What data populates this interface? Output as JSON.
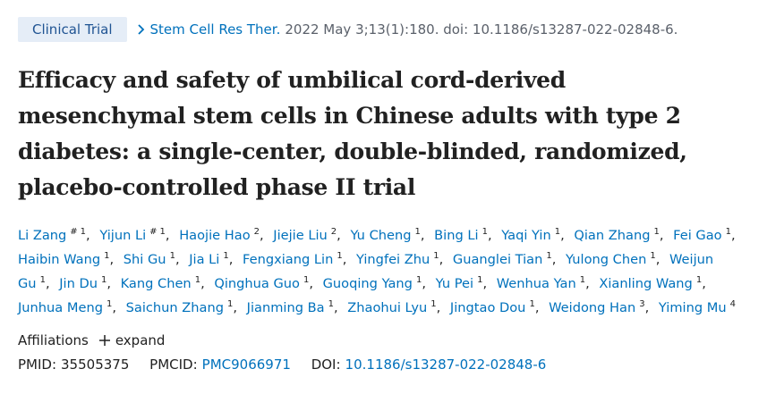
{
  "badge": "Clinical Trial",
  "citation": {
    "journal": "Stem Cell Res Ther.",
    "details": "2022 May 3;13(1):180. doi: 10.1186/s13287-022-02848-6."
  },
  "title": "Efficacy and safety of umbilical cord-derived mesenchymal stem cells in Chinese adults with type 2 diabetes: a single-center, double-blinded, randomized, placebo-controlled phase II trial",
  "author_separator": ",",
  "authors": [
    {
      "name": "Li Zang",
      "note": "#",
      "affiliation": "1"
    },
    {
      "name": "Yijun Li",
      "note": "#",
      "affiliation": "1"
    },
    {
      "name": "Haojie Hao",
      "affiliation": "2"
    },
    {
      "name": "Jiejie Liu",
      "affiliation": "2"
    },
    {
      "name": "Yu Cheng",
      "affiliation": "1"
    },
    {
      "name": "Bing Li",
      "affiliation": "1"
    },
    {
      "name": "Yaqi Yin",
      "affiliation": "1"
    },
    {
      "name": "Qian Zhang",
      "affiliation": "1"
    },
    {
      "name": "Fei Gao",
      "affiliation": "1"
    },
    {
      "name": "Haibin Wang",
      "affiliation": "1"
    },
    {
      "name": "Shi Gu",
      "affiliation": "1"
    },
    {
      "name": "Jia Li",
      "affiliation": "1"
    },
    {
      "name": "Fengxiang Lin",
      "affiliation": "1"
    },
    {
      "name": "Yingfei Zhu",
      "affiliation": "1"
    },
    {
      "name": "Guanglei Tian",
      "affiliation": "1"
    },
    {
      "name": "Yulong Chen",
      "affiliation": "1"
    },
    {
      "name": "Weijun Gu",
      "affiliation": "1"
    },
    {
      "name": "Jin Du",
      "affiliation": "1"
    },
    {
      "name": "Kang Chen",
      "affiliation": "1"
    },
    {
      "name": "Qinghua Guo",
      "affiliation": "1"
    },
    {
      "name": "Guoqing Yang",
      "affiliation": "1"
    },
    {
      "name": "Yu Pei",
      "affiliation": "1"
    },
    {
      "name": "Wenhua Yan",
      "affiliation": "1"
    },
    {
      "name": "Xianling Wang",
      "affiliation": "1"
    },
    {
      "name": "Junhua Meng",
      "affiliation": "1"
    },
    {
      "name": "Saichun Zhang",
      "affiliation": "1"
    },
    {
      "name": "Jianming Ba",
      "affiliation": "1"
    },
    {
      "name": "Zhaohui Lyu",
      "affiliation": "1"
    },
    {
      "name": "Jingtao Dou",
      "affiliation": "1"
    },
    {
      "name": "Weidong Han",
      "affiliation": "3"
    },
    {
      "name": "Yiming Mu",
      "affiliation": "4"
    }
  ],
  "affiliations": {
    "label": "Affiliations",
    "action": "expand"
  },
  "identifiers": {
    "pmid_label": "PMID:",
    "pmid": "35505375",
    "pmcid_label": "PMCID:",
    "pmcid": "PMC9066971",
    "doi_label": "DOI:",
    "doi": "10.1186/s13287-022-02848-6"
  }
}
